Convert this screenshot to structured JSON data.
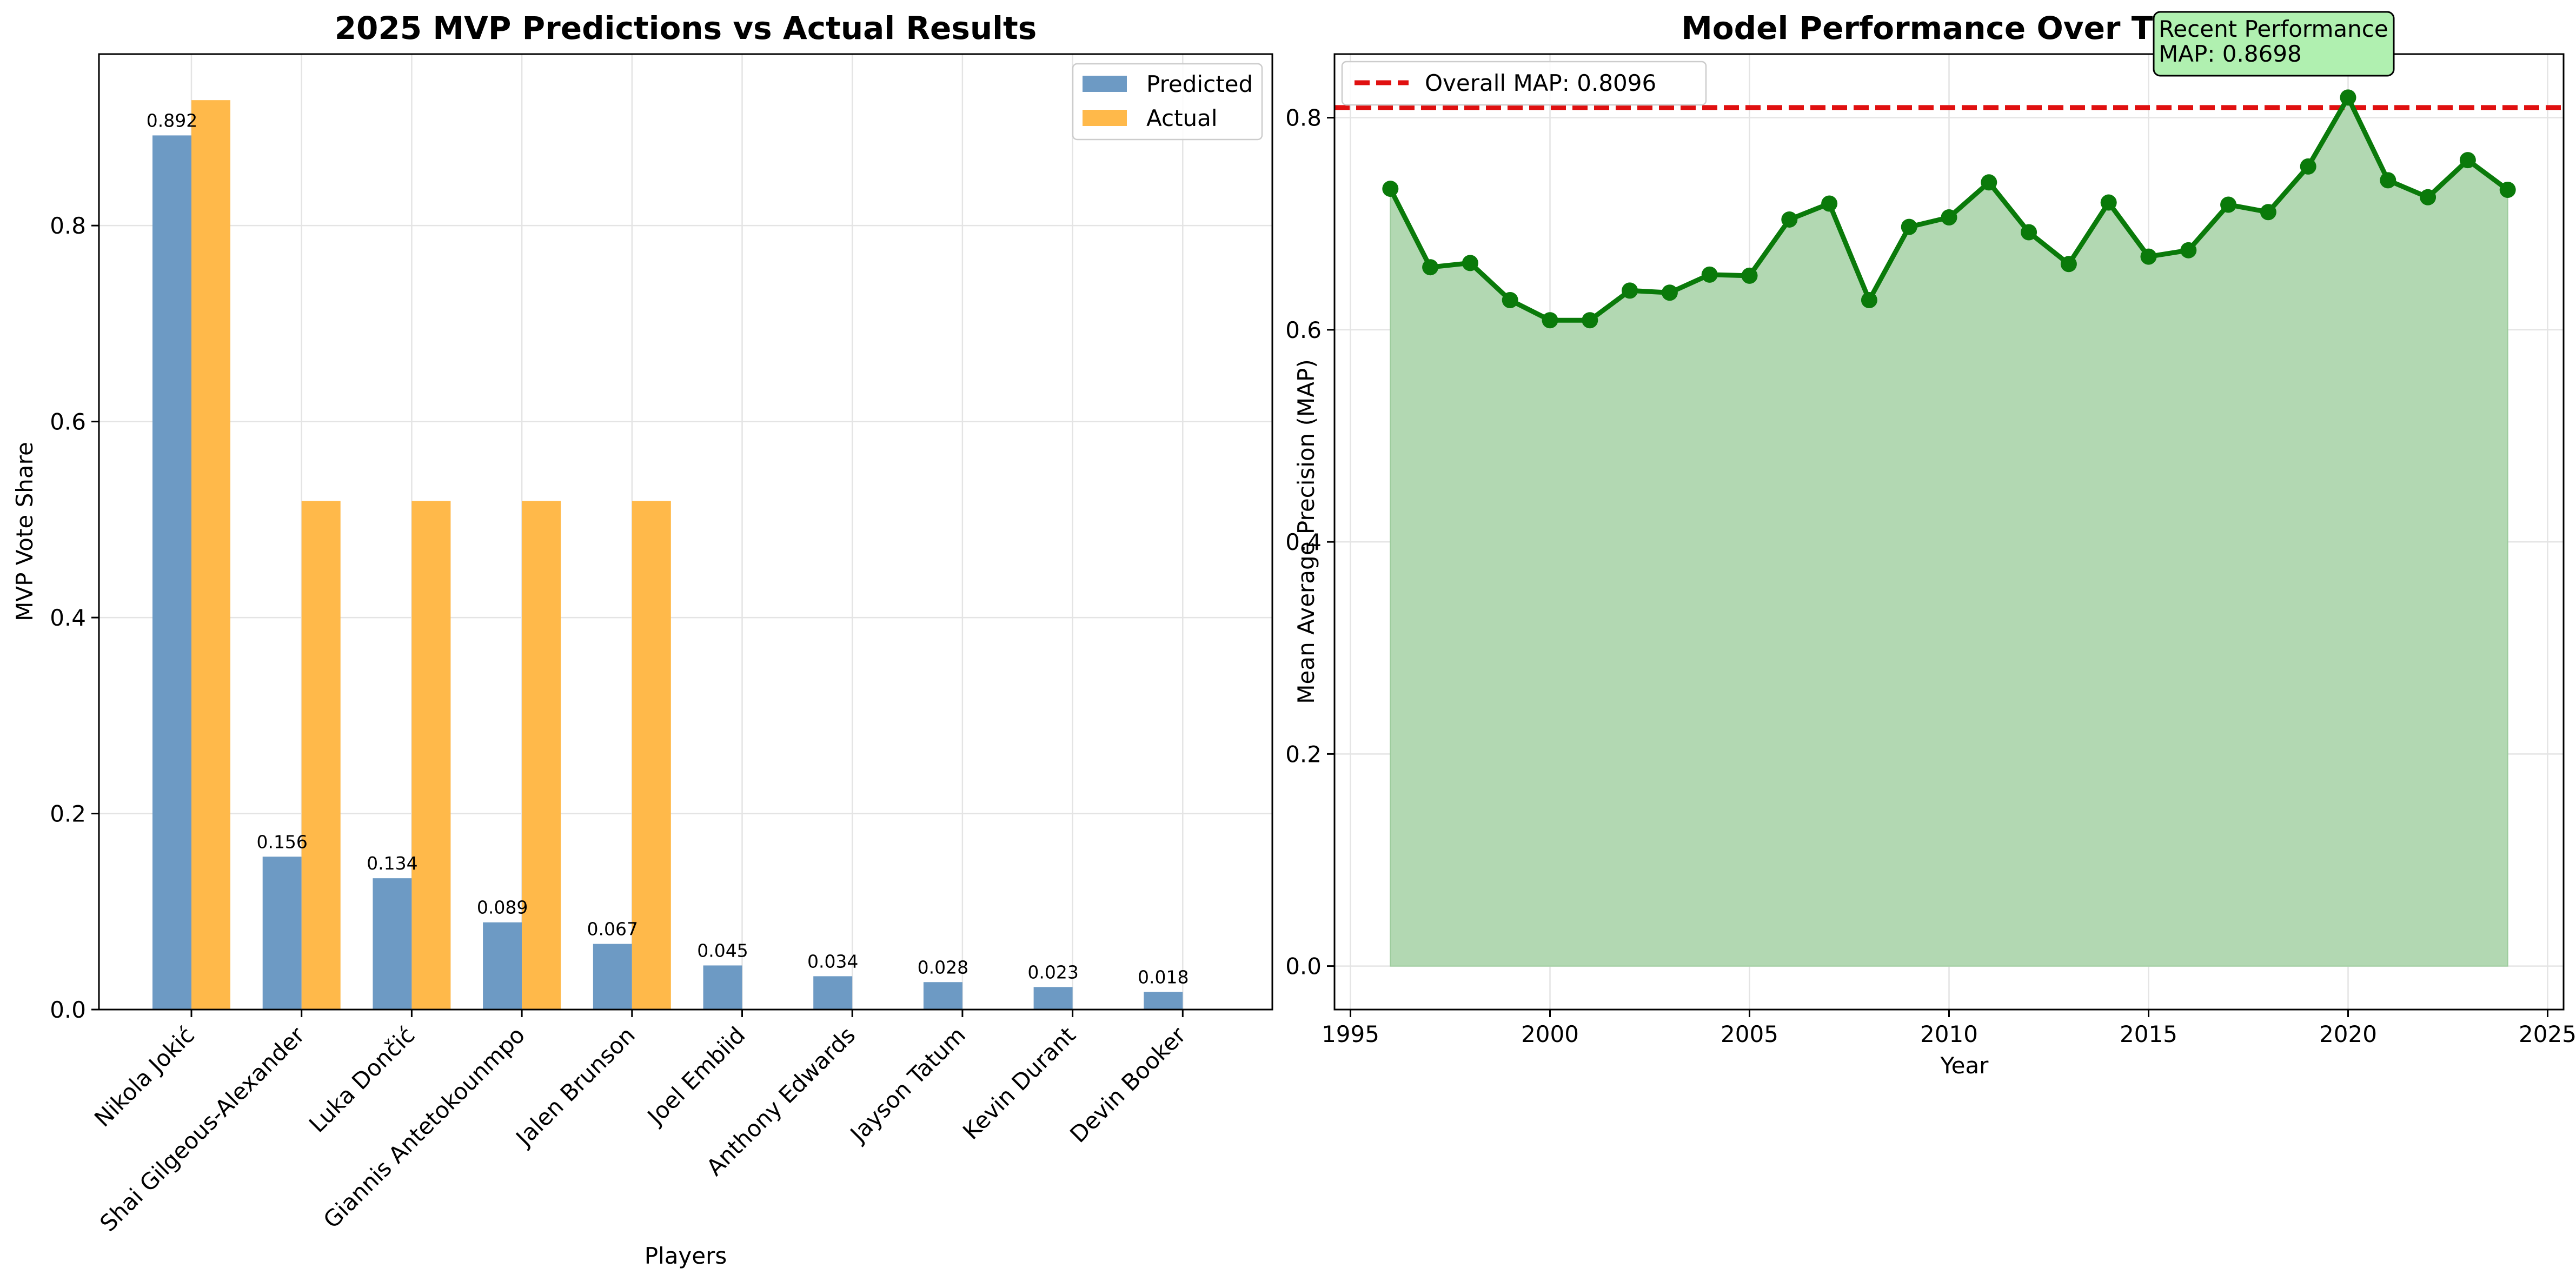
{
  "chart_data": [
    {
      "type": "bar",
      "title": "2025 MVP Predictions vs Actual Results",
      "xlabel": "Players",
      "ylabel": "MVP Vote Share",
      "ylim": [
        0,
        0.975
      ],
      "yticks": [
        "0.0",
        "0.2",
        "0.4",
        "0.6",
        "0.8"
      ],
      "grid": true,
      "legend_position": "top-right",
      "categories": [
        "Nikola Jokić",
        "Shai Gilgeous-Alexander",
        "Luka Dončić",
        "Giannis Antetokounmpo",
        "Jalen Brunson",
        "Joel Embiid",
        "Anthony Edwards",
        "Jayson Tatum",
        "Kevin Durant",
        "Devin Booker"
      ],
      "series": [
        {
          "name": "Predicted",
          "color": "#6d9ac4",
          "values": [
            0.892,
            0.156,
            0.134,
            0.089,
            0.067,
            0.045,
            0.034,
            0.028,
            0.023,
            0.018
          ],
          "data_labels": [
            "0.892",
            "0.156",
            "0.134",
            "0.089",
            "0.067",
            "0.045",
            "0.034",
            "0.028",
            "0.023",
            "0.018"
          ]
        },
        {
          "name": "Actual",
          "color": "#ffb94a",
          "values": [
            0.928,
            0.519,
            0.519,
            0.519,
            0.519,
            0,
            0,
            0,
            0,
            0
          ]
        }
      ]
    },
    {
      "type": "line",
      "title": "Model Performance Over Time",
      "xlabel": "Year",
      "ylabel": "Mean Average Precision (MAP)",
      "xlim": [
        1994.6,
        2025.4
      ],
      "ylim": [
        -0.041,
        0.86
      ],
      "xticks": [
        "1995",
        "2000",
        "2005",
        "2010",
        "2015",
        "2020",
        "2025"
      ],
      "yticks": [
        "0.0",
        "0.2",
        "0.4",
        "0.6",
        "0.8"
      ],
      "grid": true,
      "legend_position": "top-left",
      "x": [
        1996,
        1997,
        1998,
        1999,
        2000,
        2001,
        2002,
        2003,
        2004,
        2005,
        2006,
        2007,
        2008,
        2009,
        2010,
        2011,
        2012,
        2013,
        2014,
        2015,
        2016,
        2017,
        2018,
        2019,
        2020,
        2021,
        2022,
        2023,
        2024
      ],
      "series": [
        {
          "color": "#0a7a0a",
          "fill_color": "#b2d8b2",
          "values": [
            0.733,
            0.659,
            0.663,
            0.628,
            0.609,
            0.609,
            0.637,
            0.635,
            0.652,
            0.651,
            0.704,
            0.719,
            0.628,
            0.697,
            0.706,
            0.739,
            0.692,
            0.662,
            0.72,
            0.669,
            0.675,
            0.718,
            0.711,
            0.754,
            0.819,
            0.741,
            0.725,
            0.76,
            0.732
          ]
        }
      ],
      "reference_line": {
        "label": "Overall MAP: 0.8096",
        "value": 0.8096,
        "color": "#e01010"
      },
      "annotation": {
        "line1": "Recent Performance",
        "line2": "MAP: 0.8698",
        "color": "#b0f0b0"
      }
    }
  ]
}
